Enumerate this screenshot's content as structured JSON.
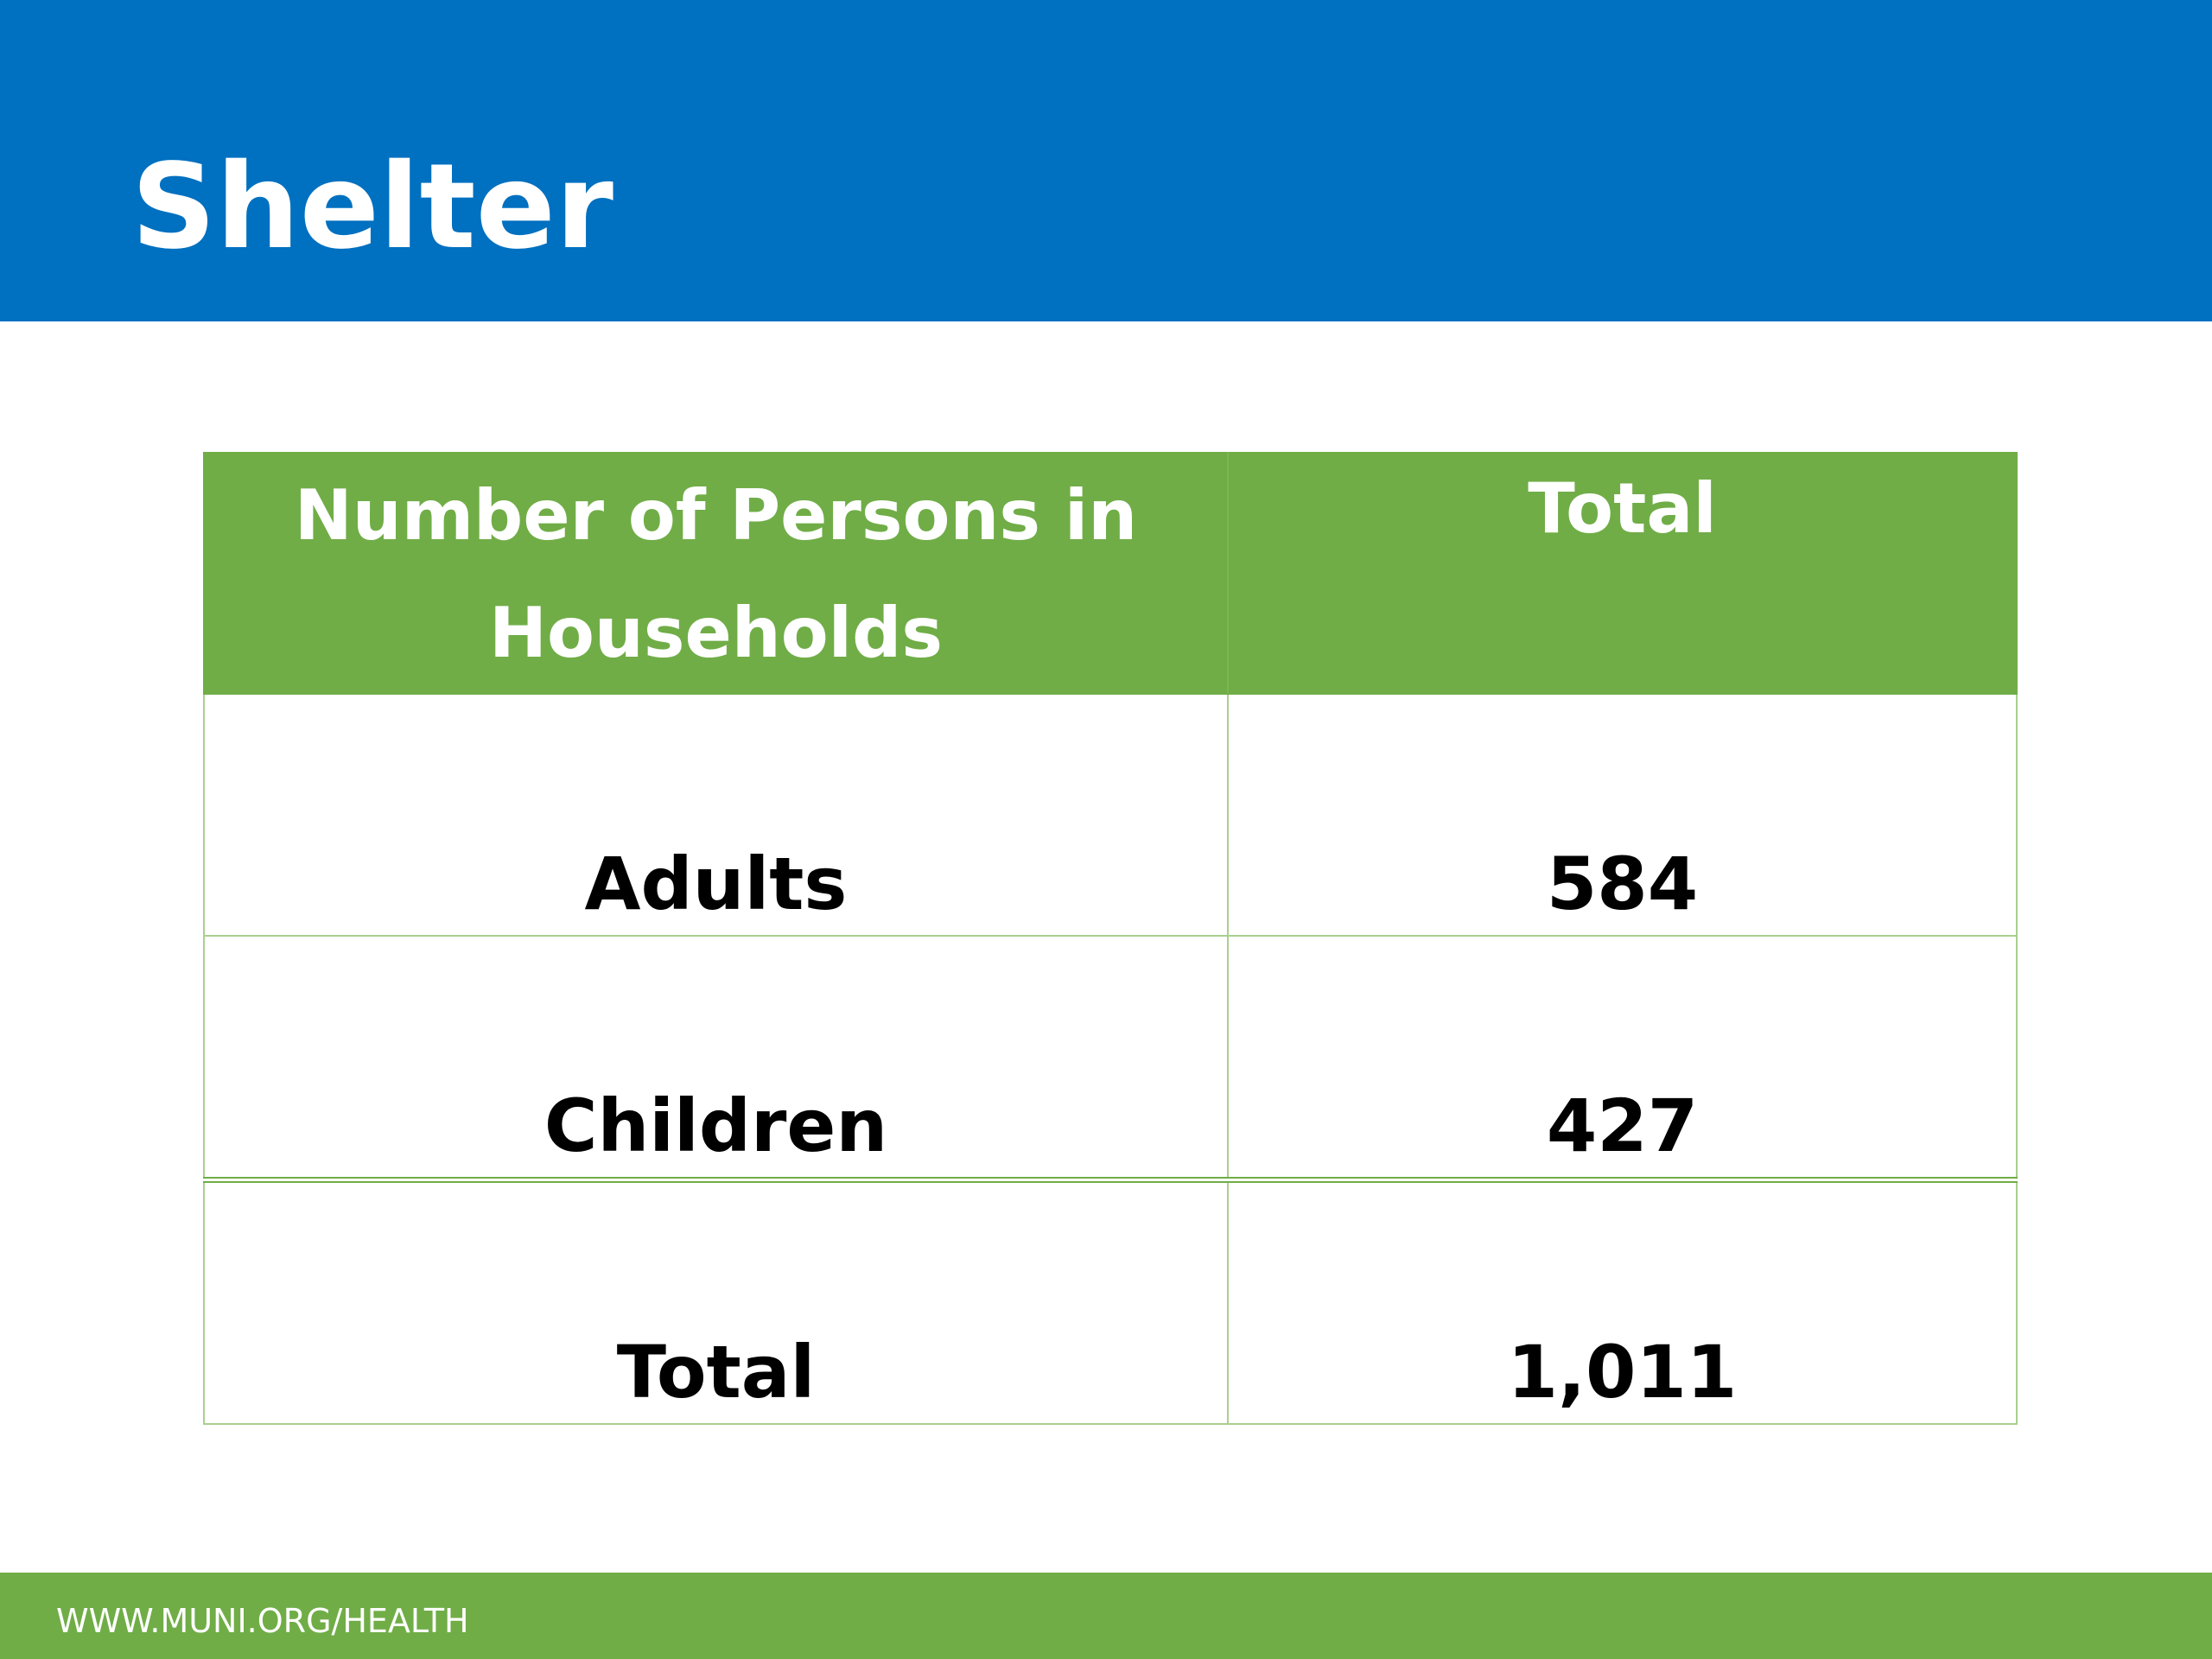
{
  "slide": {
    "title": "Shelter",
    "accent_color": "#0070c0",
    "secondary_color": "#70ad47"
  },
  "table": {
    "headers": [
      "Number of Persons in Households",
      "Total"
    ],
    "rows": [
      {
        "label": "Adults",
        "value": "584"
      },
      {
        "label": "Children",
        "value": "427"
      },
      {
        "label": "Total",
        "value": "1,011"
      }
    ]
  },
  "footer": {
    "url_text": "WWW.MUNI.ORG/HEALTH"
  }
}
